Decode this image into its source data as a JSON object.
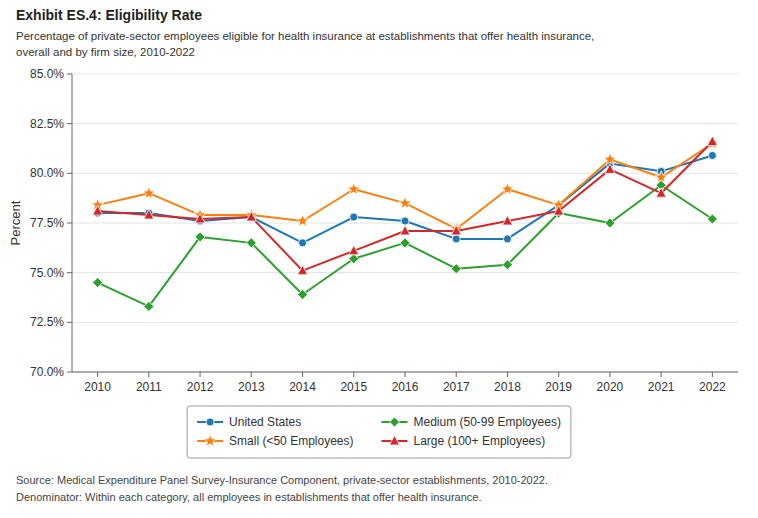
{
  "chart_data": {
    "type": "line",
    "title": "Exhibit ES.4: Eligibility Rate",
    "subtitle": [
      "Percentage of private-sector employees eligible for health insurance at establishments that offer health insurance,",
      "overall and by firm size, 2010-2022"
    ],
    "annotations": [
      "Source: Medical Expenditure Panel Survey-Insurance Component, private-sector establishments, 2010-2022.",
      "Denominator: Within each category, all employees in establishments that offer health insurance."
    ],
    "y_label": "Percent",
    "x": [
      2010,
      2011,
      2012,
      2013,
      2014,
      2015,
      2016,
      2017,
      2018,
      2019,
      2020,
      2021,
      2022
    ],
    "series": [
      {
        "name": "United States",
        "color": "#1f77b4",
        "marker": "circle",
        "values": [
          78.0,
          78.0,
          77.6,
          77.8,
          76.5,
          77.8,
          77.6,
          76.7,
          76.7,
          78.4,
          80.5,
          80.1,
          80.9
        ]
      },
      {
        "name": "Small (<50 Employees)",
        "color": "#ff7f0e",
        "marker": "star",
        "values": [
          78.4,
          79.0,
          77.9,
          77.9,
          77.6,
          79.2,
          78.5,
          77.2,
          79.2,
          78.4,
          80.7,
          79.8,
          81.5
        ]
      },
      {
        "name": "Medium (50-99 Employees)",
        "color": "#2ca02c",
        "marker": "diamond",
        "values": [
          74.5,
          73.3,
          76.8,
          76.5,
          73.9,
          75.7,
          76.5,
          75.2,
          75.4,
          78.0,
          77.5,
          79.4,
          77.7
        ]
      },
      {
        "name": "Large (100+ Employees)",
        "color": "#d62728",
        "marker": "triangle",
        "values": [
          78.1,
          77.9,
          77.7,
          77.8,
          75.1,
          76.1,
          77.1,
          77.1,
          77.6,
          78.1,
          80.2,
          79.0,
          81.6
        ]
      }
    ],
    "xlim": [
      2009.5,
      2022.5
    ],
    "xticks": [
      2010,
      2011,
      2012,
      2013,
      2014,
      2015,
      2016,
      2017,
      2018,
      2019,
      2020,
      2021,
      2022
    ],
    "ylim": [
      70.0,
      85.0
    ],
    "yticks": [
      {
        "value": 70.0,
        "label": "70.0%"
      },
      {
        "value": 72.5,
        "label": "72.5%"
      },
      {
        "value": 75.0,
        "label": "75.0%"
      },
      {
        "value": 77.5,
        "label": "77.5%"
      },
      {
        "value": 80.0,
        "label": "80.0%"
      },
      {
        "value": 82.5,
        "label": "82.5%"
      },
      {
        "value": 85.0,
        "label": "85.0%"
      }
    ],
    "grid": true,
    "legend": "bottom"
  }
}
